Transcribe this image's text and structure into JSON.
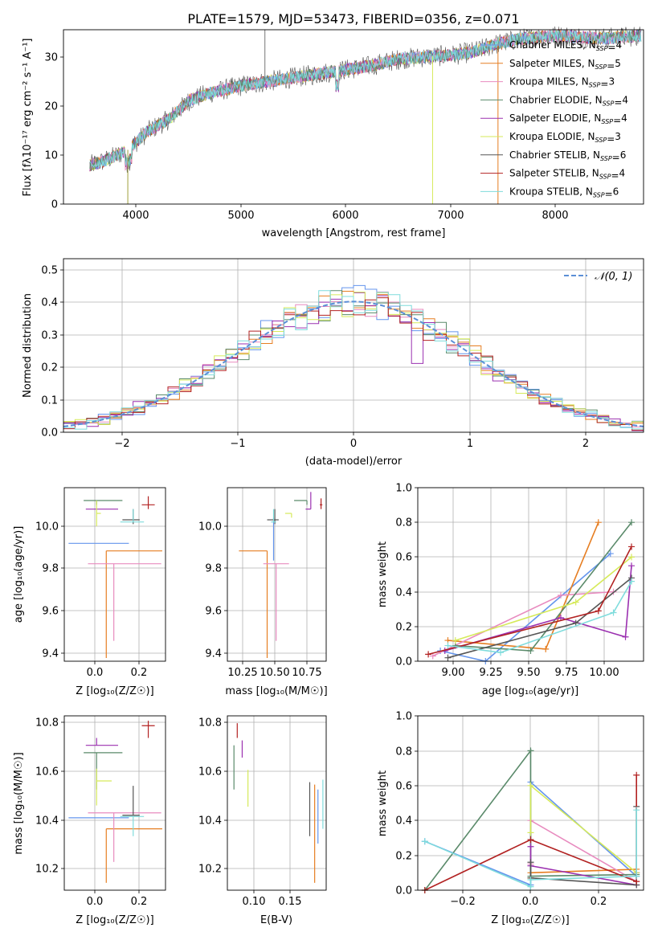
{
  "figure": {
    "title": "PLATE=1579, MJD=53473, FIBERID=0356, z=0.071"
  },
  "series": [
    {
      "name": "Chabrier MILES",
      "nssp": "4",
      "color": "#6495ed"
    },
    {
      "name": "Salpeter MILES",
      "nssp": "5",
      "color": "#e67e22"
    },
    {
      "name": "Kroupa MILES",
      "nssp": "3",
      "color": "#e88bbf"
    },
    {
      "name": "Chabrier ELODIE",
      "nssp": "4",
      "color": "#5a8a6a"
    },
    {
      "name": "Salpeter ELODIE",
      "nssp": "4",
      "color": "#9b30b0"
    },
    {
      "name": "Kroupa ELODIE",
      "nssp": "3",
      "color": "#d6ea5a"
    },
    {
      "name": "Chabrier STELIB",
      "nssp": "6",
      "color": "#555555"
    },
    {
      "name": "Salpeter STELIB",
      "nssp": "4",
      "color": "#b22222"
    },
    {
      "name": "Kroupa STELIB",
      "nssp": "6",
      "color": "#7fdcdc"
    }
  ],
  "chart_data": [
    {
      "id": "spectrum",
      "type": "line",
      "xlabel": "wavelength [Angstrom, rest frame]",
      "ylabel": "Flux [f_λ 10^-17 erg cm^-2 s^-1 A^-1]",
      "xlim": [
        3300,
        8800
      ],
      "ylim": [
        0,
        36
      ],
      "xticks": [
        "4000",
        "5000",
        "6000",
        "7000",
        "8000"
      ],
      "yticks": [
        "0",
        "10",
        "20",
        "30"
      ],
      "grid": false,
      "legend": "right",
      "continuum": [
        [
          3550,
          8
        ],
        [
          3700,
          9
        ],
        [
          3900,
          11
        ],
        [
          4000,
          13
        ],
        [
          4100,
          15
        ],
        [
          4300,
          17.5
        ],
        [
          4500,
          21.5
        ],
        [
          4700,
          23
        ],
        [
          5000,
          24.5
        ],
        [
          5300,
          25.5
        ],
        [
          5600,
          26.5
        ],
        [
          5900,
          27.5
        ],
        [
          6200,
          28.5
        ],
        [
          6500,
          30
        ],
        [
          6800,
          30.5
        ],
        [
          7000,
          30.8
        ],
        [
          7200,
          31.5
        ],
        [
          7400,
          33
        ],
        [
          7600,
          34
        ],
        [
          7800,
          34.5
        ],
        [
          8000,
          34.8
        ],
        [
          8200,
          34.5
        ],
        [
          8400,
          34.2
        ],
        [
          8600,
          34.5
        ],
        [
          8780,
          34.8
        ]
      ],
      "spikes": [
        {
          "x": 3910,
          "y": 0
        },
        {
          "x": 5210,
          "y": 36
        },
        {
          "x": 6800,
          "y": 0
        },
        {
          "x": 7420,
          "y": 0
        }
      ]
    },
    {
      "id": "residuals",
      "type": "histogram",
      "xlabel": "(data-model)/error",
      "ylabel": "Normed distribution",
      "xlim": [
        -2.5,
        2.5
      ],
      "ylim": [
        0,
        0.53
      ],
      "xticks": [
        "−2",
        "−1",
        "0",
        "1",
        "2"
      ],
      "yticks": [
        "0.0",
        "0.1",
        "0.2",
        "0.3",
        "0.4",
        "0.5"
      ],
      "grid": true,
      "legend": "top-right",
      "reference_label": "𝒩(0, 1)",
      "bin_width": 0.1
    },
    {
      "id": "age-vs-z",
      "type": "errorbar",
      "xlabel": "Z [log₁₀(Z/Z☉)]",
      "ylabel": "age  [log₁₀(age/yr)]",
      "xlim": [
        -0.15,
        0.32
      ],
      "ylim": [
        9.37,
        10.18
      ],
      "xticks": [
        "0.0",
        "0.2"
      ],
      "yticks": [
        "9.4",
        "9.6",
        "9.8",
        "10.0"
      ],
      "grid": true,
      "points": [
        {
          "series": 0,
          "x": 0.0,
          "y": 9.92,
          "xerr": [
            0.13,
            0.15
          ],
          "yerr": [
            0.0,
            0.0
          ]
        },
        {
          "series": 1,
          "x": 0.045,
          "y": 9.885,
          "xerr": [
            0.0,
            0.26
          ],
          "yerr": [
            0.5,
            0.0
          ]
        },
        {
          "series": 2,
          "x": 0.08,
          "y": 9.825,
          "xerr": [
            0.12,
            0.22
          ],
          "yerr": [
            0.36,
            0.0
          ]
        },
        {
          "series": 3,
          "x": 0.0,
          "y": 10.12,
          "xerr": [
            0.06,
            0.12
          ],
          "yerr": [
            0.02,
            0.0
          ]
        },
        {
          "series": 4,
          "x": 0.0,
          "y": 10.08,
          "xerr": [
            0.05,
            0.1
          ],
          "yerr": [
            0.0,
            0.0
          ]
        },
        {
          "series": 5,
          "x": 0.0,
          "y": 10.06,
          "xerr": [
            0.0,
            0.02
          ],
          "yerr": [
            0.06,
            0.06
          ]
        },
        {
          "series": 6,
          "x": 0.17,
          "y": 10.03,
          "xerr": [
            0.05,
            0.03
          ],
          "yerr": [
            0.02,
            0.05
          ]
        },
        {
          "series": 7,
          "x": 0.24,
          "y": 10.1,
          "xerr": [
            0.03,
            0.03
          ],
          "yerr": [
            0.02,
            0.04
          ]
        },
        {
          "series": 8,
          "x": 0.17,
          "y": 10.02,
          "xerr": [
            0.06,
            0.05
          ],
          "yerr": [
            0.0,
            0.06
          ]
        }
      ]
    },
    {
      "id": "age-vs-mass",
      "type": "errorbar",
      "xlabel": "mass [log₁₀(M/M☉)]",
      "ylabel": "",
      "xlim": [
        10.05,
        10.82
      ],
      "ylim": [
        9.37,
        10.18
      ],
      "xticks": [
        "10.25",
        "10.50",
        "10.75"
      ],
      "yticks": [
        "9.4",
        "9.6",
        "9.8",
        "10.0"
      ],
      "grid": true,
      "points": [
        {
          "series": 0,
          "x": 10.41,
          "y": 9.92,
          "xerr": [
            0.0,
            0.0
          ],
          "yerr": [
            0.08,
            0.12
          ]
        },
        {
          "series": 1,
          "x": 10.36,
          "y": 9.885,
          "xerr": [
            0.22,
            0.0
          ],
          "yerr": [
            0.5,
            0.0
          ]
        },
        {
          "series": 2,
          "x": 10.43,
          "y": 9.825,
          "xerr": [
            0.1,
            0.1
          ],
          "yerr": [
            0.36,
            0.0
          ]
        },
        {
          "series": 3,
          "x": 10.67,
          "y": 10.12,
          "xerr": [
            0.1,
            0.0
          ],
          "yerr": [
            0.02,
            0.0
          ]
        },
        {
          "series": 4,
          "x": 10.7,
          "y": 10.08,
          "xerr": [
            0.04,
            0.0
          ],
          "yerr": [
            0.0,
            0.08
          ]
        },
        {
          "series": 5,
          "x": 10.55,
          "y": 10.06,
          "xerr": [
            0.05,
            0.0
          ],
          "yerr": [
            0.02,
            0.0
          ]
        },
        {
          "series": 6,
          "x": 10.42,
          "y": 10.03,
          "xerr": [
            0.06,
            0.03
          ],
          "yerr": [
            0.02,
            0.05
          ]
        },
        {
          "series": 7,
          "x": 10.78,
          "y": 10.1,
          "xerr": [
            0.01,
            0.01
          ],
          "yerr": [
            0.02,
            0.03
          ]
        },
        {
          "series": 8,
          "x": 10.41,
          "y": 10.02,
          "xerr": [
            0.02,
            0.02
          ],
          "yerr": [
            0.0,
            0.06
          ]
        }
      ]
    },
    {
      "id": "mass-weight-vs-age",
      "type": "line",
      "xlabel": "age  [log₁₀(age/yr)]",
      "ylabel": "mass weight",
      "xlim": [
        8.75,
        10.25
      ],
      "ylim": [
        0,
        1
      ],
      "xticks": [
        "9.00",
        "9.25",
        "9.50",
        "9.75",
        "10.00"
      ],
      "yticks": [
        "0.0",
        "0.2",
        "0.4",
        "0.6",
        "0.8",
        "1.0"
      ],
      "grid": true,
      "lines": [
        {
          "series": 0,
          "x": [
            8.9,
            9.2,
            10.03
          ],
          "y": [
            0.06,
            0.0,
            0.62
          ]
        },
        {
          "series": 1,
          "x": [
            8.95,
            9.6,
            9.95
          ],
          "y": [
            0.12,
            0.07,
            0.8
          ]
        },
        {
          "series": 2,
          "x": [
            8.85,
            9.7,
            10.05
          ],
          "y": [
            0.03,
            0.38,
            0.4
          ]
        },
        {
          "series": 3,
          "x": [
            9.0,
            9.5,
            10.17
          ],
          "y": [
            0.09,
            0.06,
            0.8
          ]
        },
        {
          "series": 4,
          "x": [
            8.93,
            9.7,
            10.13,
            10.17
          ],
          "y": [
            0.06,
            0.25,
            0.14,
            0.55
          ]
        },
        {
          "series": 5,
          "x": [
            9.0,
            9.8,
            10.17
          ],
          "y": [
            0.12,
            0.34,
            0.6
          ]
        },
        {
          "series": 6,
          "x": [
            8.95,
            9.8,
            10.17
          ],
          "y": [
            0.02,
            0.22,
            0.48
          ]
        },
        {
          "series": 7,
          "x": [
            8.82,
            9.95,
            10.17
          ],
          "y": [
            0.04,
            0.29,
            0.66
          ]
        },
        {
          "series": 8,
          "x": [
            8.95,
            9.3,
            10.05,
            10.17
          ],
          "y": [
            0.09,
            0.05,
            0.28,
            0.46
          ]
        }
      ]
    },
    {
      "id": "mass-vs-z",
      "type": "errorbar",
      "xlabel": "Z [log₁₀(Z/Z☉)]",
      "ylabel": "mass [log₁₀(M/M☉)]",
      "xlim": [
        -0.15,
        0.32
      ],
      "ylim": [
        10.11,
        10.82
      ],
      "xticks": [
        "0.0",
        "0.2"
      ],
      "yticks": [
        "10.2",
        "10.4",
        "10.6",
        "10.8"
      ],
      "grid": true,
      "points": [
        {
          "series": 0,
          "x": 0.0,
          "y": 10.405,
          "xerr": [
            0.13,
            0.15
          ],
          "yerr": [
            0.0,
            0.0
          ]
        },
        {
          "series": 1,
          "x": 0.045,
          "y": 10.36,
          "xerr": [
            0.0,
            0.26
          ],
          "yerr": [
            0.22,
            0.0
          ]
        },
        {
          "series": 2,
          "x": 0.08,
          "y": 10.425,
          "xerr": [
            0.12,
            0.22
          ],
          "yerr": [
            0.2,
            0.0
          ]
        },
        {
          "series": 3,
          "x": 0.0,
          "y": 10.67,
          "xerr": [
            0.06,
            0.12
          ],
          "yerr": [
            0.15,
            0.0
          ]
        },
        {
          "series": 4,
          "x": 0.0,
          "y": 10.7,
          "xerr": [
            0.05,
            0.1
          ],
          "yerr": [
            0.0,
            0.03
          ]
        },
        {
          "series": 5,
          "x": 0.0,
          "y": 10.555,
          "xerr": [
            0.0,
            0.07
          ],
          "yerr": [
            0.1,
            0.05
          ]
        },
        {
          "series": 6,
          "x": 0.17,
          "y": 10.415,
          "xerr": [
            0.05,
            0.03
          ],
          "yerr": [
            0.0,
            0.12
          ]
        },
        {
          "series": 7,
          "x": 0.24,
          "y": 10.78,
          "xerr": [
            0.03,
            0.03
          ],
          "yerr": [
            0.05,
            0.02
          ]
        },
        {
          "series": 8,
          "x": 0.17,
          "y": 10.41,
          "xerr": [
            0.06,
            0.05
          ],
          "yerr": [
            0.08,
            0.0
          ]
        }
      ]
    },
    {
      "id": "mass-vs-ebv",
      "type": "errorbar",
      "xlabel": "E(B-V)",
      "ylabel": "",
      "xlim": [
        0.06,
        0.18
      ],
      "ylim": [
        10.11,
        10.82
      ],
      "xticks": [
        "0.10",
        "0.15"
      ],
      "yticks": [
        "10.2",
        "10.4",
        "10.6",
        "10.8"
      ],
      "grid": true,
      "points": [
        {
          "series": 0,
          "x": 0.17,
          "y": 10.4,
          "xerr": [
            0.0,
            0.0
          ],
          "yerr": [
            0.1,
            0.12
          ]
        },
        {
          "series": 1,
          "x": 0.166,
          "y": 10.36,
          "xerr": [
            0.0,
            0.0
          ],
          "yerr": [
            0.22,
            0.18
          ]
        },
        {
          "series": 2,
          "x": 0.082,
          "y": 10.43,
          "xerr": [
            0.0,
            0.0
          ],
          "yerr": [
            0.0,
            0.0
          ]
        },
        {
          "series": 3,
          "x": 0.068,
          "y": 10.62,
          "xerr": [
            0.0,
            0.0
          ],
          "yerr": [
            0.1,
            0.08
          ]
        },
        {
          "series": 4,
          "x": 0.078,
          "y": 10.69,
          "xerr": [
            0.0,
            0.0
          ],
          "yerr": [
            0.04,
            0.03
          ]
        },
        {
          "series": 5,
          "x": 0.085,
          "y": 10.55,
          "xerr": [
            0.0,
            0.0
          ],
          "yerr": [
            0.1,
            0.05
          ]
        },
        {
          "series": 6,
          "x": 0.16,
          "y": 10.41,
          "xerr": [
            0.0,
            0.0
          ],
          "yerr": [
            0.08,
            0.14
          ]
        },
        {
          "series": 7,
          "x": 0.072,
          "y": 10.75,
          "xerr": [
            0.0,
            0.0
          ],
          "yerr": [
            0.02,
            0.04
          ]
        },
        {
          "series": 8,
          "x": 0.176,
          "y": 10.46,
          "xerr": [
            0.0,
            0.0
          ],
          "yerr": [
            0.1,
            0.1
          ]
        }
      ]
    },
    {
      "id": "mass-weight-vs-z",
      "type": "line",
      "xlabel": "Z [log₁₀(Z/Z☉)]",
      "ylabel": "mass weight",
      "xlim": [
        -0.32,
        0.32
      ],
      "ylim": [
        0,
        1
      ],
      "xticks": [
        "−0.2",
        "0.0",
        "0.2"
      ],
      "yticks": [
        "0.0",
        "0.2",
        "0.4",
        "0.6",
        "0.8",
        "1.0"
      ],
      "grid": true,
      "lines": [
        {
          "series": 0,
          "x": [
            -0.3,
            0.0,
            0.0,
            0.3
          ],
          "y": [
            0.28,
            0.03,
            0.62,
            0.08
          ]
        },
        {
          "series": 1,
          "x": [
            0.0,
            0.0,
            0.3
          ],
          "y": [
            0.07,
            0.1,
            0.12
          ]
        },
        {
          "series": 2,
          "x": [
            0.0,
            0.0,
            0.3
          ],
          "y": [
            0.15,
            0.4,
            0.05
          ]
        },
        {
          "series": 3,
          "x": [
            -0.3,
            0.0,
            0.0,
            0.3
          ],
          "y": [
            0.0,
            0.8,
            0.08,
            0.09
          ]
        },
        {
          "series": 4,
          "x": [
            0.0,
            0.0,
            0.3,
            0.3
          ],
          "y": [
            0.25,
            0.14,
            0.03,
            0.1
          ]
        },
        {
          "series": 5,
          "x": [
            0.0,
            0.0,
            0.3
          ],
          "y": [
            0.33,
            0.6,
            0.1
          ]
        },
        {
          "series": 6,
          "x": [
            0.0,
            0.0,
            0.3,
            0.3
          ],
          "y": [
            0.16,
            0.07,
            0.03,
            0.48
          ]
        },
        {
          "series": 7,
          "x": [
            -0.3,
            0.0,
            0.3,
            0.3
          ],
          "y": [
            0.0,
            0.29,
            0.05,
            0.66
          ]
        },
        {
          "series": 8,
          "x": [
            -0.3,
            0.0,
            0.0,
            0.3,
            0.3
          ],
          "y": [
            0.28,
            0.02,
            0.06,
            0.08,
            0.46
          ]
        }
      ]
    }
  ]
}
